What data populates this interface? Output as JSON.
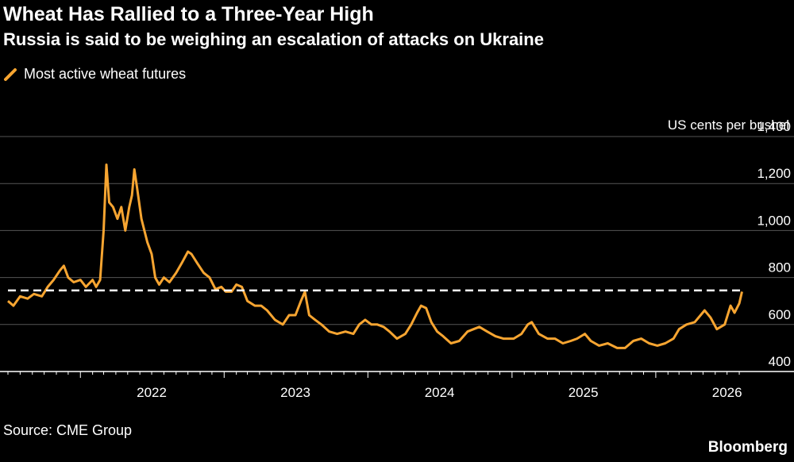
{
  "title": "Wheat Has Rallied to a Three-Year High",
  "subtitle": "Russia is said to be weighing an escalation of attacks on Ukraine",
  "legend": {
    "label": "Most active wheat futures",
    "color": "#F7A531"
  },
  "unit_label": "US cents per bushel",
  "source": "Source: CME Group",
  "brand": "Bloomberg",
  "chart_data": {
    "type": "line",
    "x_type": "date",
    "xlim": [
      "2021-07-01",
      "2026-08-15"
    ],
    "ylim": [
      400,
      1400
    ],
    "yticks": [
      400,
      600,
      800,
      1000,
      1200,
      1400
    ],
    "ytick_labels": [
      "400",
      "600",
      "800",
      "1,000",
      "1,200",
      "1,400"
    ],
    "xtick_labels": [
      "2022",
      "2023",
      "2024",
      "2025",
      "2026"
    ],
    "xtick_dates": [
      "2022-01-01",
      "2023-01-01",
      "2024-01-01",
      "2025-01-01",
      "2026-01-01"
    ],
    "grid": "horizontal",
    "reference_line": {
      "value": 745,
      "style": "dashed",
      "color": "#FFFFFF"
    },
    "series": [
      {
        "color": "#F7A531",
        "points": [
          [
            "2021-07-01",
            700
          ],
          [
            "2021-07-15",
            680
          ],
          [
            "2021-08-01",
            720
          ],
          [
            "2021-08-20",
            710
          ],
          [
            "2021-09-05",
            730
          ],
          [
            "2021-09-25",
            720
          ],
          [
            "2021-10-10",
            760
          ],
          [
            "2021-10-25",
            790
          ],
          [
            "2021-11-10",
            830
          ],
          [
            "2021-11-20",
            850
          ],
          [
            "2021-12-01",
            800
          ],
          [
            "2021-12-15",
            780
          ],
          [
            "2022-01-01",
            790
          ],
          [
            "2022-01-15",
            760
          ],
          [
            "2022-02-01",
            790
          ],
          [
            "2022-02-10",
            760
          ],
          [
            "2022-02-20",
            790
          ],
          [
            "2022-03-01",
            1000
          ],
          [
            "2022-03-08",
            1280
          ],
          [
            "2022-03-15",
            1120
          ],
          [
            "2022-03-25",
            1100
          ],
          [
            "2022-04-05",
            1050
          ],
          [
            "2022-04-15",
            1100
          ],
          [
            "2022-04-25",
            1000
          ],
          [
            "2022-05-05",
            1100
          ],
          [
            "2022-05-12",
            1150
          ],
          [
            "2022-05-18",
            1260
          ],
          [
            "2022-05-25",
            1180
          ],
          [
            "2022-06-05",
            1050
          ],
          [
            "2022-06-20",
            950
          ],
          [
            "2022-07-01",
            900
          ],
          [
            "2022-07-10",
            800
          ],
          [
            "2022-07-20",
            770
          ],
          [
            "2022-08-01",
            800
          ],
          [
            "2022-08-15",
            780
          ],
          [
            "2022-09-01",
            820
          ],
          [
            "2022-09-15",
            860
          ],
          [
            "2022-10-01",
            910
          ],
          [
            "2022-10-10",
            900
          ],
          [
            "2022-10-25",
            860
          ],
          [
            "2022-11-10",
            820
          ],
          [
            "2022-11-25",
            800
          ],
          [
            "2022-12-10",
            750
          ],
          [
            "2022-12-25",
            760
          ],
          [
            "2023-01-05",
            740
          ],
          [
            "2023-01-20",
            740
          ],
          [
            "2023-02-01",
            770
          ],
          [
            "2023-02-15",
            760
          ],
          [
            "2023-03-01",
            700
          ],
          [
            "2023-03-20",
            680
          ],
          [
            "2023-04-05",
            680
          ],
          [
            "2023-04-20",
            660
          ],
          [
            "2023-05-10",
            620
          ],
          [
            "2023-05-30",
            600
          ],
          [
            "2023-06-15",
            640
          ],
          [
            "2023-07-01",
            640
          ],
          [
            "2023-07-15",
            700
          ],
          [
            "2023-07-25",
            740
          ],
          [
            "2023-08-05",
            640
          ],
          [
            "2023-08-20",
            620
          ],
          [
            "2023-09-05",
            600
          ],
          [
            "2023-09-25",
            570
          ],
          [
            "2023-10-15",
            560
          ],
          [
            "2023-11-05",
            570
          ],
          [
            "2023-11-25",
            560
          ],
          [
            "2023-12-10",
            600
          ],
          [
            "2023-12-25",
            620
          ],
          [
            "2024-01-10",
            600
          ],
          [
            "2024-01-25",
            600
          ],
          [
            "2024-02-10",
            590
          ],
          [
            "2024-02-25",
            570
          ],
          [
            "2024-03-15",
            540
          ],
          [
            "2024-04-05",
            560
          ],
          [
            "2024-04-20",
            600
          ],
          [
            "2024-05-05",
            650
          ],
          [
            "2024-05-15",
            680
          ],
          [
            "2024-05-28",
            670
          ],
          [
            "2024-06-10",
            610
          ],
          [
            "2024-06-25",
            570
          ],
          [
            "2024-07-10",
            550
          ],
          [
            "2024-07-30",
            520
          ],
          [
            "2024-08-20",
            530
          ],
          [
            "2024-09-10",
            570
          ],
          [
            "2024-09-25",
            580
          ],
          [
            "2024-10-10",
            590
          ],
          [
            "2024-10-30",
            570
          ],
          [
            "2024-11-20",
            550
          ],
          [
            "2024-12-10",
            540
          ],
          [
            "2025-01-05",
            540
          ],
          [
            "2025-01-25",
            560
          ],
          [
            "2025-02-10",
            600
          ],
          [
            "2025-02-20",
            610
          ],
          [
            "2025-03-10",
            560
          ],
          [
            "2025-04-01",
            540
          ],
          [
            "2025-04-20",
            540
          ],
          [
            "2025-05-10",
            520
          ],
          [
            "2025-05-30",
            530
          ],
          [
            "2025-06-15",
            540
          ],
          [
            "2025-07-05",
            560
          ],
          [
            "2025-07-20",
            530
          ],
          [
            "2025-08-10",
            510
          ],
          [
            "2025-09-01",
            520
          ],
          [
            "2025-09-25",
            500
          ],
          [
            "2025-10-15",
            500
          ],
          [
            "2025-11-05",
            530
          ],
          [
            "2025-11-25",
            540
          ],
          [
            "2025-12-15",
            520
          ],
          [
            "2026-01-05",
            510
          ],
          [
            "2026-01-25",
            520
          ],
          [
            "2026-02-15",
            540
          ],
          [
            "2026-03-01",
            580
          ],
          [
            "2026-03-20",
            600
          ],
          [
            "2026-04-10",
            610
          ],
          [
            "2026-04-25",
            640
          ],
          [
            "2026-05-05",
            660
          ],
          [
            "2026-05-20",
            630
          ],
          [
            "2026-06-05",
            580
          ],
          [
            "2026-06-25",
            600
          ],
          [
            "2026-07-10",
            680
          ],
          [
            "2026-07-20",
            650
          ],
          [
            "2026-08-01",
            690
          ],
          [
            "2026-08-08",
            740
          ]
        ]
      }
    ]
  }
}
